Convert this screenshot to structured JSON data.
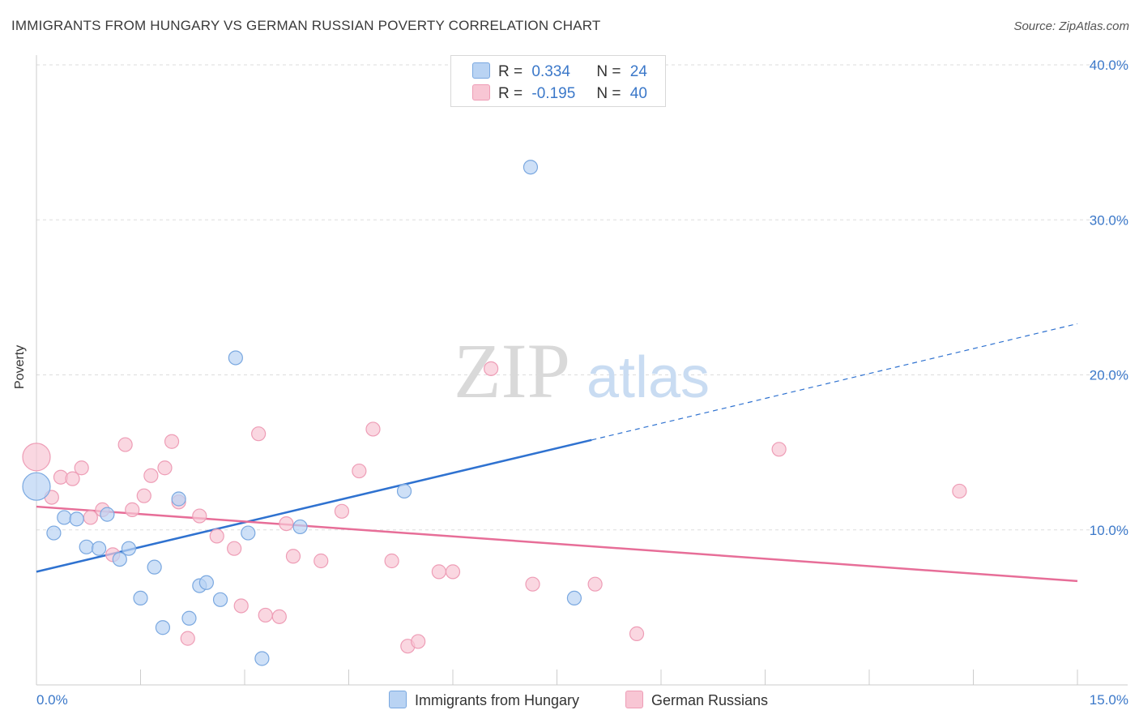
{
  "title": "IMMIGRANTS FROM HUNGARY VS GERMAN RUSSIAN POVERTY CORRELATION CHART",
  "source": "Source: ZipAtlas.com",
  "watermark": {
    "zip": "ZIP",
    "atlas": "atlas"
  },
  "legend": {
    "series1": {
      "r_label": "R =",
      "r_value": "0.334",
      "n_label": "N =",
      "n_value": "24"
    },
    "series2": {
      "r_label": "R =",
      "r_value": "-0.195",
      "n_label": "N =",
      "n_value": "40"
    }
  },
  "bottom_legend": {
    "series1": "Immigrants from Hungary",
    "series2": "German Russians"
  },
  "colors": {
    "series1_fill": "#b9d3f3",
    "series1_stroke": "#7aa8e0",
    "series1_line": "#2f72d0",
    "series2_fill": "#f8c6d4",
    "series2_stroke": "#ee9db6",
    "series2_line": "#e76e98",
    "tick": "#3b78c9",
    "grid": "#dddddd"
  },
  "chart_data": {
    "type": "scatter",
    "title": "IMMIGRANTS FROM HUNGARY VS GERMAN RUSSIAN POVERTY CORRELATION CHART",
    "xlabel": "",
    "ylabel": "Poverty",
    "xlim": [
      0,
      15
    ],
    "ylim": [
      0,
      40
    ],
    "x_tick_labels": [
      "0.0%",
      "15.0%"
    ],
    "y_tick_labels": [
      "10.0%",
      "20.0%",
      "30.0%",
      "40.0%"
    ],
    "y_ticks": [
      10,
      20,
      30,
      40
    ],
    "series": [
      {
        "name": "Immigrants from Hungary",
        "r": 0.334,
        "n": 24,
        "points": [
          {
            "x": 0.0,
            "y": 12.8,
            "size": "large"
          },
          {
            "x": 0.25,
            "y": 9.8
          },
          {
            "x": 0.4,
            "y": 10.8
          },
          {
            "x": 0.58,
            "y": 10.7
          },
          {
            "x": 0.72,
            "y": 8.9
          },
          {
            "x": 0.9,
            "y": 8.8
          },
          {
            "x": 1.02,
            "y": 11.0
          },
          {
            "x": 1.2,
            "y": 8.1
          },
          {
            "x": 1.33,
            "y": 8.8
          },
          {
            "x": 1.5,
            "y": 5.6
          },
          {
            "x": 1.7,
            "y": 7.6
          },
          {
            "x": 1.82,
            "y": 3.7
          },
          {
            "x": 2.05,
            "y": 12.0
          },
          {
            "x": 2.2,
            "y": 4.3
          },
          {
            "x": 2.35,
            "y": 6.4
          },
          {
            "x": 2.45,
            "y": 6.6
          },
          {
            "x": 2.65,
            "y": 5.5
          },
          {
            "x": 2.87,
            "y": 21.1
          },
          {
            "x": 3.05,
            "y": 9.8
          },
          {
            "x": 3.25,
            "y": 1.7
          },
          {
            "x": 3.8,
            "y": 10.2
          },
          {
            "x": 5.3,
            "y": 12.5
          },
          {
            "x": 7.12,
            "y": 33.4
          },
          {
            "x": 7.75,
            "y": 5.6
          }
        ],
        "trend": {
          "x0": 0.0,
          "y0": 7.3,
          "x1": 8.0,
          "y1": 15.8,
          "dash_to_x": 15.0,
          "dash_to_y": 23.3
        }
      },
      {
        "name": "German Russians",
        "r": -0.195,
        "n": 40,
        "points": [
          {
            "x": 0.0,
            "y": 14.7,
            "size": "large"
          },
          {
            "x": 0.22,
            "y": 12.1
          },
          {
            "x": 0.35,
            "y": 13.4
          },
          {
            "x": 0.52,
            "y": 13.3
          },
          {
            "x": 0.65,
            "y": 14.0
          },
          {
            "x": 0.78,
            "y": 10.8
          },
          {
            "x": 0.95,
            "y": 11.3
          },
          {
            "x": 1.1,
            "y": 8.4
          },
          {
            "x": 1.28,
            "y": 15.5
          },
          {
            "x": 1.38,
            "y": 11.3
          },
          {
            "x": 1.55,
            "y": 12.2
          },
          {
            "x": 1.65,
            "y": 13.5
          },
          {
            "x": 1.85,
            "y": 14.0
          },
          {
            "x": 1.95,
            "y": 15.7
          },
          {
            "x": 2.05,
            "y": 11.8
          },
          {
            "x": 2.18,
            "y": 3.0
          },
          {
            "x": 2.35,
            "y": 10.9
          },
          {
            "x": 2.6,
            "y": 9.6
          },
          {
            "x": 2.85,
            "y": 8.8
          },
          {
            "x": 2.95,
            "y": 5.1
          },
          {
            "x": 3.2,
            "y": 16.2
          },
          {
            "x": 3.3,
            "y": 4.5
          },
          {
            "x": 3.5,
            "y": 4.4
          },
          {
            "x": 3.6,
            "y": 10.4
          },
          {
            "x": 3.7,
            "y": 8.3
          },
          {
            "x": 4.1,
            "y": 8.0
          },
          {
            "x": 4.4,
            "y": 11.2
          },
          {
            "x": 4.65,
            "y": 13.8
          },
          {
            "x": 4.85,
            "y": 16.5
          },
          {
            "x": 5.12,
            "y": 8.0
          },
          {
            "x": 5.35,
            "y": 2.5
          },
          {
            "x": 5.5,
            "y": 2.8
          },
          {
            "x": 5.8,
            "y": 7.3
          },
          {
            "x": 6.0,
            "y": 7.3
          },
          {
            "x": 6.55,
            "y": 20.4
          },
          {
            "x": 7.15,
            "y": 6.5
          },
          {
            "x": 8.05,
            "y": 6.5
          },
          {
            "x": 8.65,
            "y": 3.3
          },
          {
            "x": 10.7,
            "y": 15.2
          },
          {
            "x": 13.3,
            "y": 12.5
          }
        ],
        "trend": {
          "x0": 0.0,
          "y0": 11.5,
          "x1": 15.0,
          "y1": 6.7
        }
      }
    ]
  }
}
